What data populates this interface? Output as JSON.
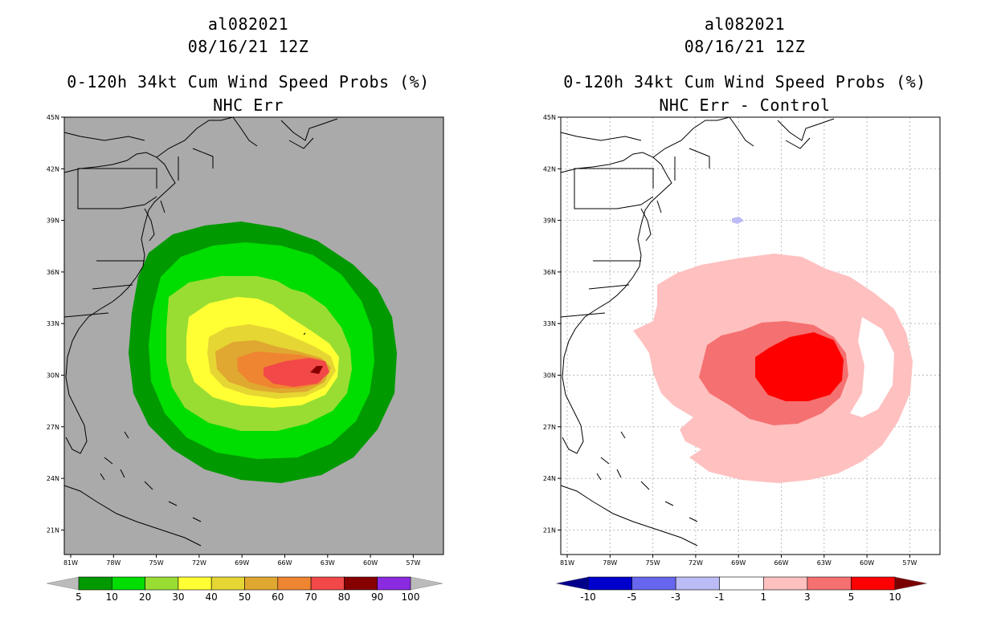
{
  "panels": [
    {
      "storm_id": "al082021",
      "datetime": "08/16/21 12Z",
      "product": "0-120h 34kt Cum Wind Speed Probs (%)",
      "subtitle": "NHC Err",
      "map_background": "#aaaaaa",
      "lat_labels": [
        "45N",
        "42N",
        "39N",
        "36N",
        "33N",
        "30N",
        "27N",
        "24N",
        "21N"
      ],
      "lon_labels": [
        "81W",
        "78W",
        "75W",
        "72W",
        "69W",
        "66W",
        "63W",
        "60W",
        "57W"
      ],
      "colorbar": {
        "labels": [
          "5",
          "10",
          "20",
          "30",
          "40",
          "50",
          "60",
          "70",
          "80",
          "90",
          "100"
        ],
        "colors": [
          "#009900",
          "#00dd00",
          "#99dd33",
          "#ffff33",
          "#e6d633",
          "#e0a830",
          "#ef8530",
          "#f24848",
          "#870000",
          "#8a2be2"
        ],
        "end_colors": [
          "#bbbbbb",
          "#bbbbbb"
        ]
      }
    },
    {
      "storm_id": "al082021",
      "datetime": "08/16/21 12Z",
      "product": "0-120h 34kt Cum Wind Speed Probs (%)",
      "subtitle": "NHC Err - Control",
      "map_background": "#ffffff",
      "lat_labels": [
        "45N",
        "42N",
        "39N",
        "36N",
        "33N",
        "30N",
        "27N",
        "24N",
        "21N"
      ],
      "lon_labels": [
        "81W",
        "78W",
        "75W",
        "72W",
        "69W",
        "66W",
        "63W",
        "60W",
        "57W"
      ],
      "colorbar": {
        "labels": [
          "-10",
          "-5",
          "-3",
          "-1",
          "1",
          "3",
          "5",
          "10"
        ],
        "colors": [
          "#0000cc",
          "#6666ee",
          "#bbbbf5",
          "#ffffff",
          "#ffc0c0",
          "#f57070",
          "#ff0000"
        ],
        "end_colors": [
          "#00008b",
          "#7a0000"
        ]
      }
    }
  ]
}
